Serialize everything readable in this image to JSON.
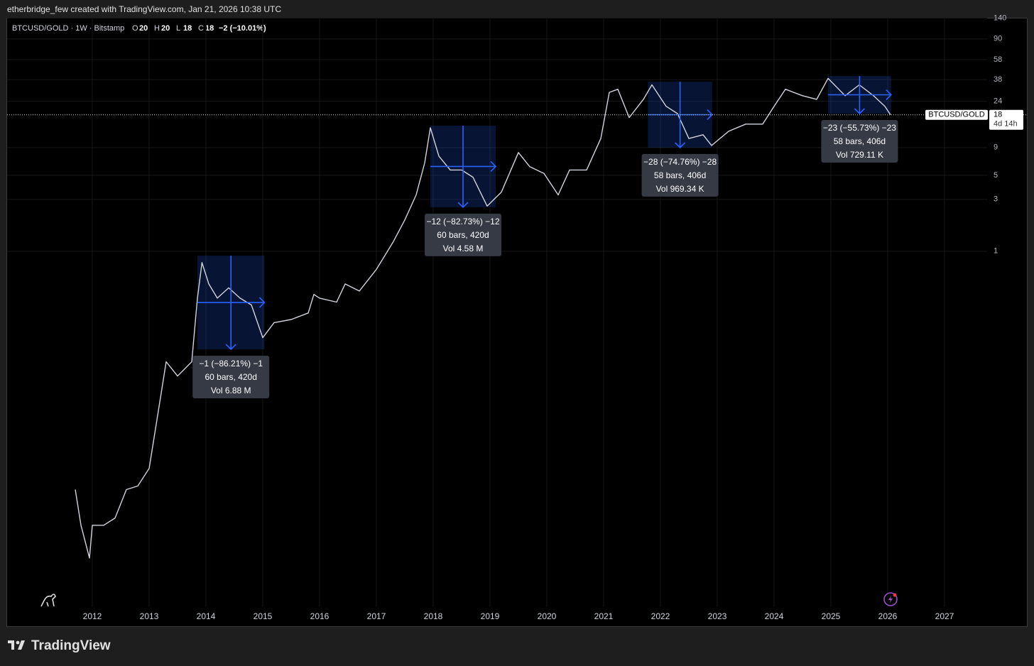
{
  "chart_data": {
    "type": "line",
    "header": "etherbridge_few created with TradingView.com, Jan 21, 2026 10:38 UTC",
    "symbol_info": "BTCUSD/GOLD · 1W · Bitstamp",
    "ohlc": [
      {
        "label": "O",
        "value": 20
      },
      {
        "label": "H",
        "value": 20
      },
      {
        "label": "L",
        "value": 18
      },
      {
        "label": "C",
        "value": 18
      }
    ],
    "change": "−2 (−10.01%)",
    "x": [
      2011.7,
      2011.8,
      2011.95,
      2012.0,
      2012.2,
      2012.4,
      2012.6,
      2012.8,
      2013.0,
      2013.2,
      2013.3,
      2013.5,
      2013.75,
      2013.85,
      2013.93,
      2014.05,
      2014.2,
      2014.4,
      2014.6,
      2014.8,
      2015.0,
      2015.2,
      2015.5,
      2015.8,
      2015.9,
      2016.0,
      2016.3,
      2016.45,
      2016.7,
      2017.0,
      2017.3,
      2017.5,
      2017.7,
      2017.85,
      2017.95,
      2018.1,
      2018.3,
      2018.5,
      2018.7,
      2018.95,
      2019.2,
      2019.5,
      2019.7,
      2019.95,
      2020.2,
      2020.4,
      2020.7,
      2020.95,
      2021.1,
      2021.25,
      2021.45,
      2021.7,
      2021.85,
      2022.1,
      2022.3,
      2022.5,
      2022.75,
      2022.9,
      2023.2,
      2023.5,
      2023.8,
      2024.0,
      2024.2,
      2024.5,
      2024.75,
      2024.95,
      2025.25,
      2025.5,
      2025.75,
      2025.95,
      2026.05
    ],
    "series": [
      {
        "name": "BTCUSD/GOLD",
        "color": "#d1d4dc",
        "values": [
          0.0064,
          0.003,
          0.0015,
          0.003,
          0.003,
          0.0035,
          0.0064,
          0.0069,
          0.01,
          0.045,
          0.096,
          0.071,
          0.096,
          0.37,
          0.786,
          0.5,
          0.37,
          0.46,
          0.37,
          0.32,
          0.16,
          0.22,
          0.235,
          0.27,
          0.4,
          0.37,
          0.34,
          0.5,
          0.43,
          0.68,
          1.23,
          1.94,
          3.3,
          6.5,
          13.7,
          7.5,
          5.6,
          5.6,
          4.8,
          2.6,
          3.5,
          8.1,
          6,
          5.2,
          3.3,
          5.6,
          5.6,
          10.9,
          29,
          31,
          17,
          25,
          34,
          21.6,
          18.5,
          10.9,
          11.8,
          9.4,
          12.7,
          14.8,
          14.8,
          21.6,
          31,
          27,
          25,
          39,
          27,
          34,
          27,
          21.6,
          18
        ]
      }
    ],
    "last_price": 18,
    "countdown": "4d 14h",
    "log_scale": true,
    "grid": true,
    "xlim": [
      2010.5,
      2027.75
    ],
    "xticks": [
      2012,
      2013,
      2014,
      2015,
      2016,
      2017,
      2018,
      2019,
      2020,
      2021,
      2022,
      2023,
      2024,
      2025,
      2026,
      2027
    ],
    "ylim": [
      0.00053,
      141
    ],
    "yticks": [
      1,
      3,
      5,
      9,
      24,
      38,
      58,
      90,
      140
    ],
    "annotations": [
      {
        "x": [
          2013.85,
          2015.03
        ],
        "y": [
          0.125,
          0.91
        ],
        "lines": [
          "−1 (−86.21%) −1",
          "60 bars, 420d",
          "Vol 6.88 M"
        ]
      },
      {
        "x": [
          2017.95,
          2019.1
        ],
        "y": [
          2.54,
          14.3
        ],
        "lines": [
          "−12 (−82.73%) −12",
          "60 bars, 420d",
          "Vol 4.58 M"
        ]
      },
      {
        "x": [
          2021.78,
          2022.91
        ],
        "y": [
          9,
          36.3
        ],
        "lines": [
          "−28 (−74.76%) −28",
          "58 bars, 406d",
          "Vol 969.34 K"
        ]
      },
      {
        "x": [
          2024.95,
          2026.06
        ],
        "y": [
          18.5,
          41
        ],
        "lines": [
          "−23 (−55.73%) −23",
          "58 bars, 406d",
          "Vol 729.11 K"
        ]
      }
    ],
    "brand": "TradingView"
  }
}
